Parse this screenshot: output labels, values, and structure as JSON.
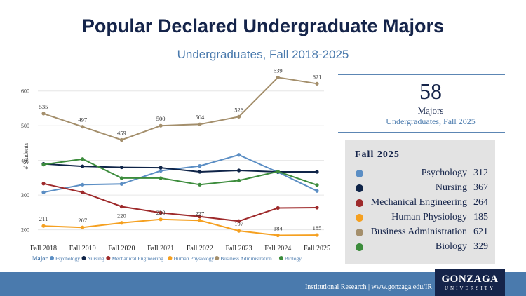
{
  "header": {
    "title": "Popular Declared Undergraduate Majors",
    "subtitle": "Undergraduates, Fall 2018-2025"
  },
  "kpi": {
    "value": "58",
    "label": "Majors",
    "sublabel": "Undergraduates, Fall 2025"
  },
  "panel": {
    "title": "Fall 2025",
    "rows": [
      {
        "name": "Psychology",
        "value": "312",
        "color": "#5b8ec4"
      },
      {
        "name": "Nursing",
        "value": "367",
        "color": "#0f2448"
      },
      {
        "name": "Mechanical Engineering",
        "value": "264",
        "color": "#9e2a2b"
      },
      {
        "name": "Human Physiology",
        "value": "185",
        "color": "#f5a020"
      },
      {
        "name": "Business Administration",
        "value": "621",
        "color": "#a48f6c"
      },
      {
        "name": "Biology",
        "value": "329",
        "color": "#3c8c3c"
      }
    ]
  },
  "footer": {
    "text": "Institutional Research | www.gonzaga.edu/IR",
    "logo_main": "GONZAGA",
    "logo_sub": "UNIVERSITY"
  },
  "chart_data": {
    "type": "line",
    "ylabel": "# Students",
    "xlabel": "",
    "x": [
      "Fall 2018",
      "Fall 2019",
      "Fall 2020",
      "Fall 2021",
      "Fall 2022",
      "Fall 2023",
      "Fall 2024",
      "Fall 2025"
    ],
    "y_ticks": [
      200,
      300,
      400,
      500,
      600
    ],
    "ylim": [
      175,
      650
    ],
    "grid": true,
    "legend": {
      "title": "Major",
      "placement": "bottom"
    },
    "series": [
      {
        "name": "Psychology",
        "color": "#5b8ec4",
        "values": [
          308,
          330,
          332,
          370,
          384,
          416,
          366,
          312
        ],
        "labels": []
      },
      {
        "name": "Nursing",
        "color": "#0f2448",
        "values": [
          390,
          383,
          380,
          379,
          367,
          371,
          367,
          367
        ],
        "labels": []
      },
      {
        "name": "Mechanical Engineering",
        "color": "#9e2a2b",
        "values": [
          333,
          308,
          267,
          249,
          238,
          225,
          263,
          264
        ],
        "labels": []
      },
      {
        "name": "Human Physiology",
        "color": "#f5a020",
        "values": [
          211,
          207,
          220,
          230,
          227,
          197,
          184,
          185
        ],
        "labels": [
          "211",
          "207",
          "220",
          "230",
          "227",
          "197",
          "184",
          "185"
        ]
      },
      {
        "name": "Business Administration",
        "color": "#a48f6c",
        "values": [
          535,
          497,
          459,
          500,
          504,
          526,
          639,
          621
        ],
        "labels": [
          "535",
          "497",
          "459",
          "500",
          "504",
          "526",
          "639",
          "621"
        ]
      },
      {
        "name": "Biology",
        "color": "#3c8c3c",
        "values": [
          388,
          404,
          349,
          349,
          330,
          342,
          368,
          329
        ],
        "labels": []
      }
    ]
  }
}
